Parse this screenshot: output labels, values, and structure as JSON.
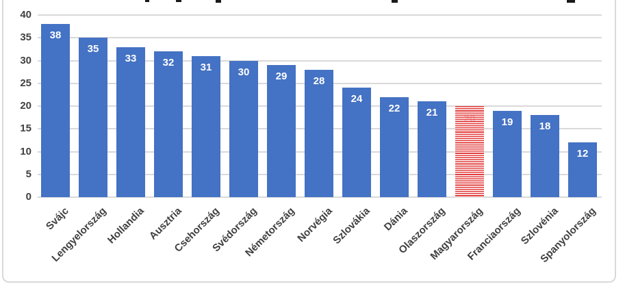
{
  "chart_data": {
    "type": "bar",
    "title": "",
    "title_note": "title cropped out of frame at top edge",
    "categories": [
      "Svájc",
      "Lengyelország",
      "Hollandia",
      "Ausztria",
      "Csehország",
      "Svédország",
      "Németország",
      "Norvégia",
      "Szlovákia",
      "Dánia",
      "Olaszország",
      "Magyarország",
      "Franciaország",
      "Szlovénia",
      "Spanyolország"
    ],
    "values": [
      38,
      35,
      33,
      32,
      31,
      30,
      29,
      28,
      24,
      22,
      21,
      20,
      19,
      18,
      12
    ],
    "highlighted_category": "Magyarország",
    "highlighted_style": "red-white-horizontal-stripes",
    "y_ticks": [
      0,
      5,
      10,
      15,
      20,
      25,
      30,
      35,
      40
    ],
    "ylim": [
      0,
      40
    ],
    "grid": true,
    "legend": "none",
    "xlabel": "",
    "ylabel": "",
    "colors": {
      "bar": "#4472C4",
      "highlight_stripe": "#E23B3B",
      "value_label": "#FFFFFF",
      "highlight_value_label": "#F6CFCF",
      "axis_text": "#404040",
      "gridline": "#D9D9D9",
      "frame_border": "#D9D9D9",
      "background": "#FFFFFF"
    }
  }
}
